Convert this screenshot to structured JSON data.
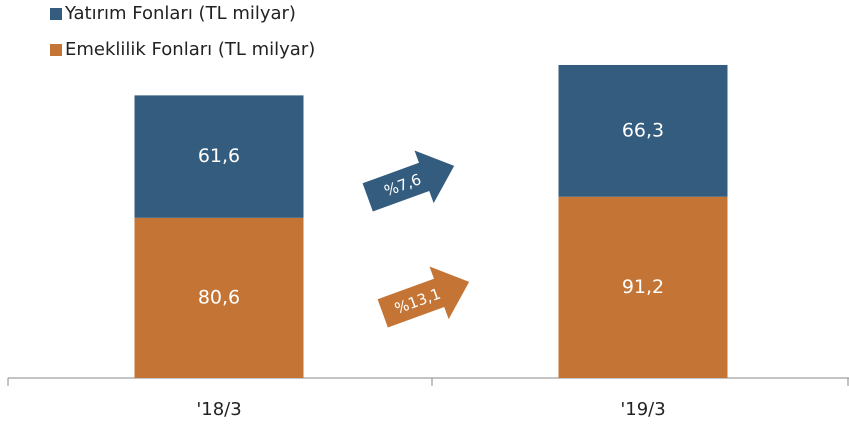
{
  "chart_data": {
    "type": "stacked_bar",
    "categories": [
      "'18/3",
      "'19/3"
    ],
    "series": [
      {
        "name": "Emeklilik Fonları (TL milyar)",
        "color": "#c47535",
        "values": [
          80.6,
          91.2
        ],
        "value_labels": [
          "80,6",
          "91,2"
        ]
      },
      {
        "name": "Yatırım Fonları (TL milyar)",
        "color": "#345c7e",
        "values": [
          61.6,
          66.3
        ],
        "value_labels": [
          "61,6",
          "66,3"
        ]
      }
    ],
    "ylim": [
      0,
      160
    ],
    "annotations": [
      "%7,6",
      "%13,1"
    ]
  }
}
